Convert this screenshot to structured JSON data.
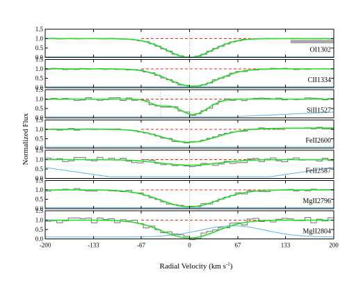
{
  "chart_data": {
    "type": "line",
    "xlabel": "Radial Velocity (km s",
    "xlabel_sup": "-1",
    "xlabel_close": ")",
    "ylabel": "Normalized Flux",
    "xlim": [
      -200,
      200
    ],
    "x_ticks": [
      -200,
      -133,
      -67,
      0,
      67,
      133,
      200
    ],
    "x_tick_labels": [
      "-200",
      "-133",
      "-67",
      "0",
      "67",
      "133",
      "200"
    ],
    "panels": [
      {
        "label": "OI1302",
        "ylim": [
          0,
          1.5
        ],
        "y_ticks": [
          0.0,
          0.5,
          1.0,
          1.5
        ],
        "y_tick_labels": [
          "0.0",
          "0.5",
          "1.0",
          "1.5"
        ],
        "dashed_level": 1.0,
        "components_x": [
          0
        ],
        "fit": {
          "depth": 1.0,
          "center": 0,
          "sigma": 32
        },
        "data_noise": 0.02,
        "error_level": 0.03,
        "mask_region": [
          140,
          200
        ],
        "mask_level": 0.93
      },
      {
        "label": "CII1334",
        "ylim": [
          0,
          1.5
        ],
        "y_ticks": [
          0.0,
          0.5,
          1.0,
          1.5
        ],
        "y_tick_labels": [
          "0.0",
          "0.5",
          "1.0",
          "1.5"
        ],
        "dashed_level": 1.0,
        "components_x": [
          0
        ],
        "fit": {
          "depth": 0.93,
          "center": 5,
          "sigma": 34
        },
        "data_noise": 0.04,
        "error_level": 0.04
      },
      {
        "label": "SiII1527",
        "ylim": [
          0,
          1.5
        ],
        "y_ticks": [
          0.0,
          0.5,
          1.0,
          1.5
        ],
        "y_tick_labels": [
          "0.0",
          "0.5",
          "1.0",
          "1.5"
        ],
        "dashed_level": 1.0,
        "components_x": [
          -40,
          0
        ],
        "fit": {
          "depth": 0.82,
          "center": 5,
          "sigma": 20,
          "depth2": 0.3,
          "center2": -42,
          "sigma2": 13
        },
        "data_noise": 0.08,
        "error_level": 0.06,
        "error_rise": 0.25
      },
      {
        "label": "FeII2600",
        "ylim": [
          0,
          1.5
        ],
        "y_ticks": [
          0.0,
          0.5,
          1.0,
          1.5
        ],
        "y_tick_labels": [
          "0.0",
          "0.5",
          "1.0",
          "1.5"
        ],
        "dashed_level": 1.0,
        "components_x": [
          0
        ],
        "fit": {
          "depth": 0.72,
          "center": 0,
          "sigma": 38
        },
        "continuum_tilt": 0.12,
        "data_noise": 0.05,
        "error_level": 0.06
      },
      {
        "label": "FeII2587",
        "ylim": [
          0,
          1.5
        ],
        "y_ticks": [
          0.0,
          0.5,
          1.0,
          1.5
        ],
        "y_tick_labels": [
          "0.0",
          "0.5",
          "1.0",
          "1.5"
        ],
        "dashed_level": 1.0,
        "components_x": [
          0
        ],
        "fit": {
          "depth": 0.3,
          "center": 0,
          "sigma": 40
        },
        "data_noise": 0.12,
        "error_level": 0.08,
        "error_edges": 0.5
      },
      {
        "label": "MgII2796",
        "ylim": [
          0,
          1.5
        ],
        "y_ticks": [
          0.0,
          0.5,
          1.0,
          1.5
        ],
        "y_tick_labels": [
          "0.0",
          "0.5",
          "1.0",
          "1.5"
        ],
        "dashed_level": 1.0,
        "components_x": [
          0
        ],
        "fit": {
          "depth": 0.9,
          "center": 0,
          "sigma": 40
        },
        "data_noise": 0.08,
        "error_level": 0.05
      },
      {
        "label": "MgII2804",
        "ylim": [
          0,
          1.5
        ],
        "y_ticks": [
          0.0,
          0.5,
          1.0,
          1.5
        ],
        "y_tick_labels": [
          "0.0",
          "0.5",
          "1.0",
          "1.5"
        ],
        "dashed_level": 1.0,
        "components_x": [
          0
        ],
        "fit": {
          "depth": 0.95,
          "center": 0,
          "sigma": 38
        },
        "data_noise": 0.15,
        "error_level": 0.1,
        "error_hump": [
          60,
          0.6
        ]
      }
    ],
    "colors": {
      "data": "#707070",
      "fit": "#22dd22",
      "dashed": "#ff2020",
      "error": "#5ab4e8",
      "mask": "#a8a8a8",
      "component": "#8a8aa8",
      "axis": "#000000"
    },
    "grid": false
  }
}
